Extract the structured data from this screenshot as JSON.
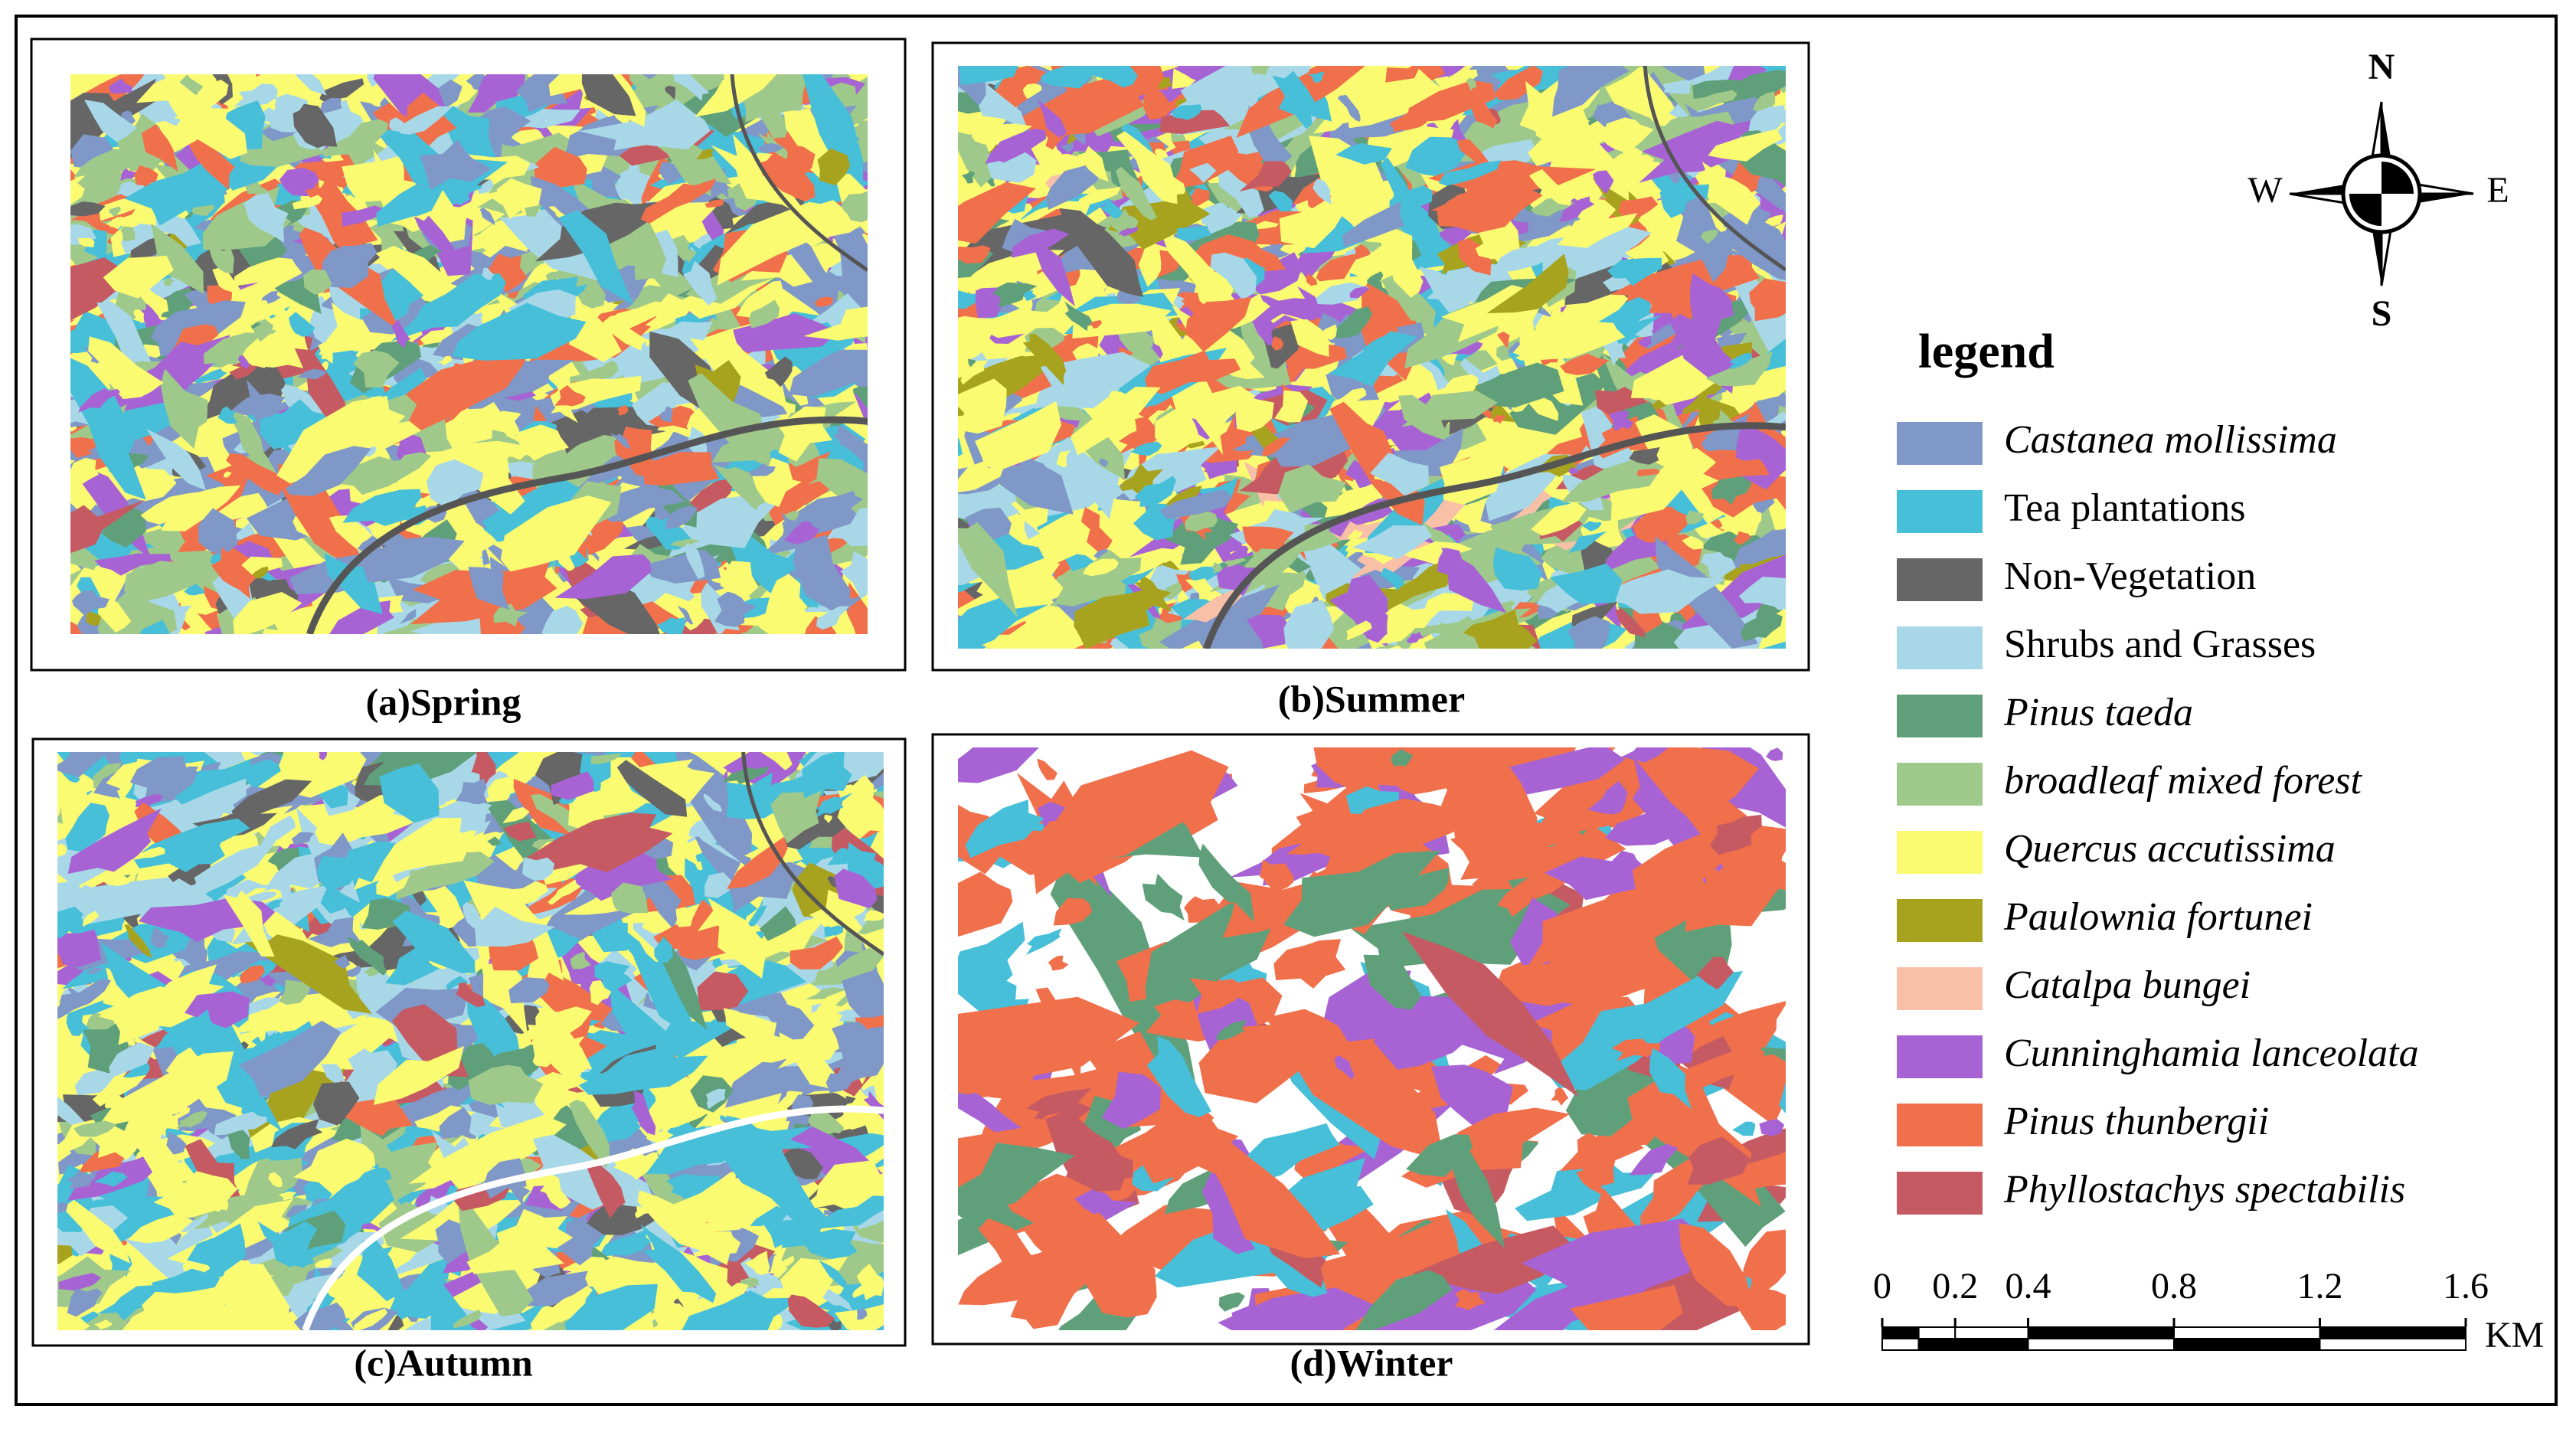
{
  "panels": [
    {
      "caption": "(a)Spring"
    },
    {
      "caption": "(b)Summer"
    },
    {
      "caption": "(c)Autumn"
    },
    {
      "caption": "(d)Winter"
    }
  ],
  "compass": {
    "north": "N",
    "south": "S",
    "east": "E",
    "west": "W"
  },
  "legend": {
    "title": "legend",
    "items": [
      {
        "label": "Castanea mollissima",
        "color": "#7f98c8",
        "italic": true
      },
      {
        "label": "Tea plantations",
        "color": "#47bfd9",
        "italic": false
      },
      {
        "label": "Non-Vegetation",
        "color": "#666666",
        "italic": false
      },
      {
        "label": "Shrubs and Grasses",
        "color": "#a8d8e8",
        "italic": false
      },
      {
        "label": "Pinus taeda",
        "color": "#5fa07a",
        "italic": true
      },
      {
        "label": "broadleaf mixed forest",
        "color": "#9fc98a",
        "italic": true
      },
      {
        "label": "Quercus accutissima",
        "color": "#fbfb72",
        "italic": true
      },
      {
        "label": "Paulownia fortunei",
        "color": "#a8a31e",
        "italic": true
      },
      {
        "label": "Catalpa bungei",
        "color": "#f9c0a8",
        "italic": true
      },
      {
        "label": "Cunninghamia lanceolata",
        "color": "#a763d4",
        "italic": true
      },
      {
        "label": "Pinus thunbergii",
        "color": "#f0704c",
        "italic": true
      },
      {
        "label": "Phyllostachys spectabilis",
        "color": "#c65a62",
        "italic": true
      }
    ]
  },
  "scale_bar": {
    "ticks": [
      0,
      0.2,
      0.4,
      0.8,
      1.2,
      1.6
    ],
    "unit": "KM"
  }
}
